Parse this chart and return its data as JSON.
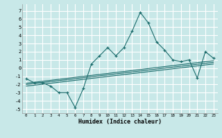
{
  "xlabel": "Humidex (Indice chaleur)",
  "background_color": "#c8e8e8",
  "grid_color": "#ffffff",
  "line_color": "#1a6b6b",
  "xlim": [
    -0.5,
    23.5
  ],
  "ylim": [
    -5.5,
    7.8
  ],
  "xticks": [
    0,
    1,
    2,
    3,
    4,
    5,
    6,
    7,
    8,
    9,
    10,
    11,
    12,
    13,
    14,
    15,
    16,
    17,
    18,
    19,
    20,
    21,
    22,
    23
  ],
  "yticks": [
    -5,
    -4,
    -3,
    -2,
    -1,
    0,
    1,
    2,
    3,
    4,
    5,
    6,
    7
  ],
  "main_line_x": [
    0,
    1,
    2,
    3,
    4,
    5,
    6,
    7,
    8,
    9,
    10,
    11,
    12,
    13,
    14,
    15,
    16,
    17,
    18,
    19,
    20,
    21,
    22,
    23
  ],
  "main_line_y": [
    -1.3,
    -1.8,
    -1.8,
    -2.2,
    -3.0,
    -3.0,
    -4.8,
    -2.5,
    0.5,
    1.5,
    2.5,
    1.5,
    2.5,
    4.5,
    6.8,
    5.5,
    3.2,
    2.2,
    1.0,
    0.8,
    1.0,
    -1.2,
    2.0,
    1.2
  ],
  "reg_lines": [
    {
      "x": [
        0,
        23
      ],
      "y": [
        -2.2,
        0.5
      ]
    },
    {
      "x": [
        0,
        23
      ],
      "y": [
        -2.0,
        0.7
      ]
    },
    {
      "x": [
        0,
        23
      ],
      "y": [
        -1.85,
        0.9
      ]
    }
  ]
}
